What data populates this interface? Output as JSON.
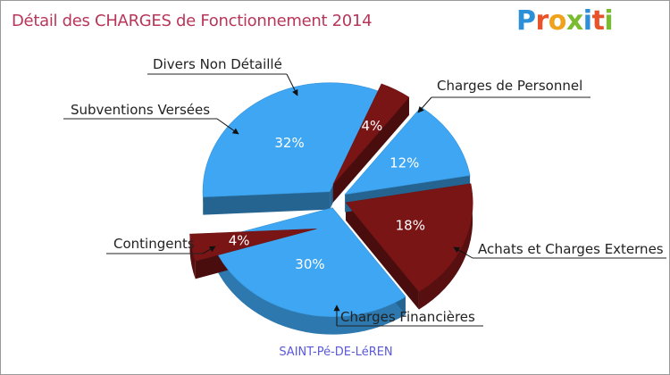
{
  "logo": {
    "text": "Proxiti",
    "colors": [
      "#2c8fd8",
      "#e8532a",
      "#f0a21c",
      "#7bbb2f",
      "#2c8fd8",
      "#e8532a",
      "#7bbb2f"
    ]
  },
  "chart_data": {
    "type": "pie",
    "style": "3d-exploded",
    "title": "Détail des CHARGES de Fonctionnement 2014",
    "caption": "SAINT-Pé-DE-LéREN",
    "colors": {
      "dark_red": "#7a1515",
      "blue": "#3ea6f2",
      "title": "#b8365a",
      "caption": "#5a5ad8"
    },
    "slices": [
      {
        "name": "Charges de Personnel",
        "value": 18,
        "label": "18%",
        "color": "#7a1515"
      },
      {
        "name": "Achats et Charges Externes",
        "value": 30,
        "label": "30%",
        "color": "#3ea6f2"
      },
      {
        "name": "Charges Financières",
        "value": 4,
        "label": "4%",
        "color": "#7a1515"
      },
      {
        "name": "Contingents",
        "value": 32,
        "label": "32%",
        "color": "#3ea6f2"
      },
      {
        "name": "Subventions Versées",
        "value": 4,
        "label": "4%",
        "color": "#7a1515"
      },
      {
        "name": "Divers Non Détaillé",
        "value": 12,
        "label": "12%",
        "color": "#3ea6f2"
      }
    ]
  }
}
